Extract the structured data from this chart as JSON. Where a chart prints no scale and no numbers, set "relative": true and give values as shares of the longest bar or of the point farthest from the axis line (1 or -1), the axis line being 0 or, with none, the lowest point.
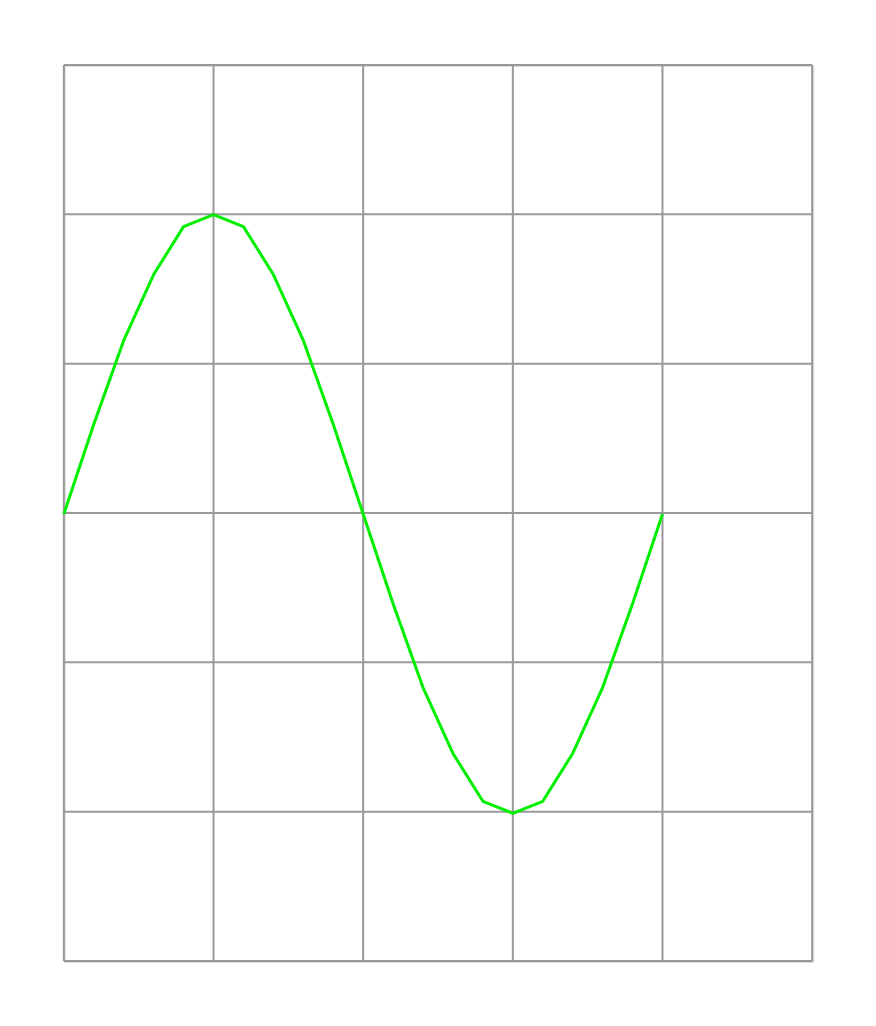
{
  "chart_data": {
    "type": "line",
    "relative": true,
    "grid": true,
    "marker": "none",
    "line_style": "solid",
    "categories": [
      null,
      null,
      null,
      null,
      null,
      null,
      null,
      null,
      null,
      null,
      null,
      null,
      null,
      null,
      null,
      null,
      null,
      null,
      null,
      null,
      null,
      null,
      null,
      null,
      null,
      null
    ],
    "series": [
      {
        "color": "#00ee00",
        "values": [
          0.5,
          0.65,
          0.79,
          0.9,
          0.98,
          1,
          0.98,
          0.9,
          0.79,
          0.65,
          0.5,
          0.35,
          0.21,
          0.1,
          0.02,
          0,
          0.02,
          0.1,
          0.21,
          0.35,
          0.5,
          null,
          null,
          null,
          null,
          null
        ]
      }
    ]
  }
}
